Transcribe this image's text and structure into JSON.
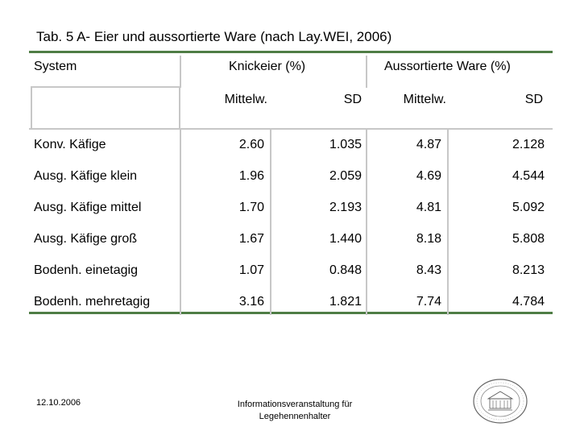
{
  "title": "Tab. 5 A- Eier und aussortierte Ware (nach Lay.WEI, 2006)",
  "table": {
    "headers": {
      "system": "System",
      "knickeier": "Knickeier (%)",
      "aussortiert": "Aussortierte Ware (%)"
    },
    "subheaders": [
      "Mittelw.",
      "SD",
      "Mittelw.",
      "SD"
    ],
    "rows": [
      {
        "name": "Konv. Käfige",
        "k_mean": "2.60",
        "k_sd": "1.035",
        "a_mean": "4.87",
        "a_sd": "2.128"
      },
      {
        "name": "Ausg. Käfige klein",
        "k_mean": "1.96",
        "k_sd": "2.059",
        "a_mean": "4.69",
        "a_sd": "4.544"
      },
      {
        "name": "Ausg. Käfige mittel",
        "k_mean": "1.70",
        "k_sd": "2.193",
        "a_mean": "4.81",
        "a_sd": "5.092"
      },
      {
        "name": "Ausg. Käfige groß",
        "k_mean": "1.67",
        "k_sd": "1.440",
        "a_mean": "8.18",
        "a_sd": "5.808"
      },
      {
        "name": "Bodenh. einetagig",
        "k_mean": "1.07",
        "k_sd": "0.848",
        "a_mean": "8.43",
        "a_sd": "8.213"
      },
      {
        "name": "Bodenh. mehretagig",
        "k_mean": "3.16",
        "k_sd": "1.821",
        "a_mean": "7.74",
        "a_sd": "4.784"
      }
    ]
  },
  "footer": {
    "date": "12.10.2006",
    "center_line1": "Informationsveranstaltung für",
    "center_line2": "Legehennenhalter"
  },
  "colors": {
    "rule": "#4f7d45",
    "grid": "#c7c7c7"
  },
  "seal_icon": "university-seal-icon"
}
